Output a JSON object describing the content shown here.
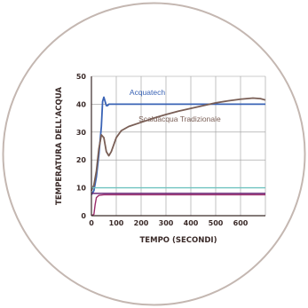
{
  "chart_data": {
    "type": "line",
    "xlabel": "TEMPO (SECONDI)",
    "ylabel": "TEMPERATURA DELL'ACQUA",
    "xlim": [
      0,
      700
    ],
    "ylim": [
      0,
      50
    ],
    "xticks": [
      "0",
      "100",
      "200",
      "300",
      "400",
      "500",
      "600"
    ],
    "yticks": [
      "0",
      "10",
      "20",
      "30",
      "40",
      "50"
    ],
    "grid": true,
    "colors": {
      "acquatech": "#3a63b5",
      "tradizionale": "#7a5f56",
      "teal": "#6fc3c0",
      "violet": "#6a2a7a",
      "magenta": "#9b2a6a",
      "axis": "#3a2a28",
      "grid": "#9a9a9a",
      "circle": "#c4b7b1"
    },
    "series": [
      {
        "name": "Acquatech",
        "key": "acquatech",
        "x": [
          0,
          10,
          20,
          30,
          40,
          45,
          50,
          55,
          60,
          65,
          70,
          80,
          100,
          700
        ],
        "y": [
          7.5,
          9,
          14,
          22,
          32,
          41,
          42.5,
          41,
          39.5,
          39.5,
          40,
          40,
          40,
          40
        ]
      },
      {
        "name": "Scaldacqua Tradizionale",
        "key": "tradizionale",
        "x": [
          0,
          10,
          20,
          30,
          40,
          50,
          60,
          70,
          80,
          90,
          100,
          120,
          150,
          200,
          250,
          300,
          350,
          400,
          450,
          500,
          550,
          600,
          650,
          680,
          700
        ],
        "y": [
          9,
          11,
          16,
          24,
          29,
          28,
          23,
          21.5,
          23,
          25.5,
          28,
          30.5,
          32,
          33.5,
          35,
          36.3,
          37.5,
          38.5,
          39.5,
          40.5,
          41.2,
          41.8,
          42.2,
          42,
          41.5
        ]
      },
      {
        "key": "teal",
        "x": [
          0,
          700
        ],
        "y": [
          10,
          10
        ]
      },
      {
        "key": "violet",
        "x": [
          0,
          700
        ],
        "y": [
          8,
          8
        ]
      },
      {
        "key": "magenta",
        "x": [
          0,
          10,
          15,
          20,
          30,
          50,
          700
        ],
        "y": [
          0,
          0.5,
          4,
          6.5,
          7.3,
          7.5,
          7.5
        ]
      }
    ]
  }
}
